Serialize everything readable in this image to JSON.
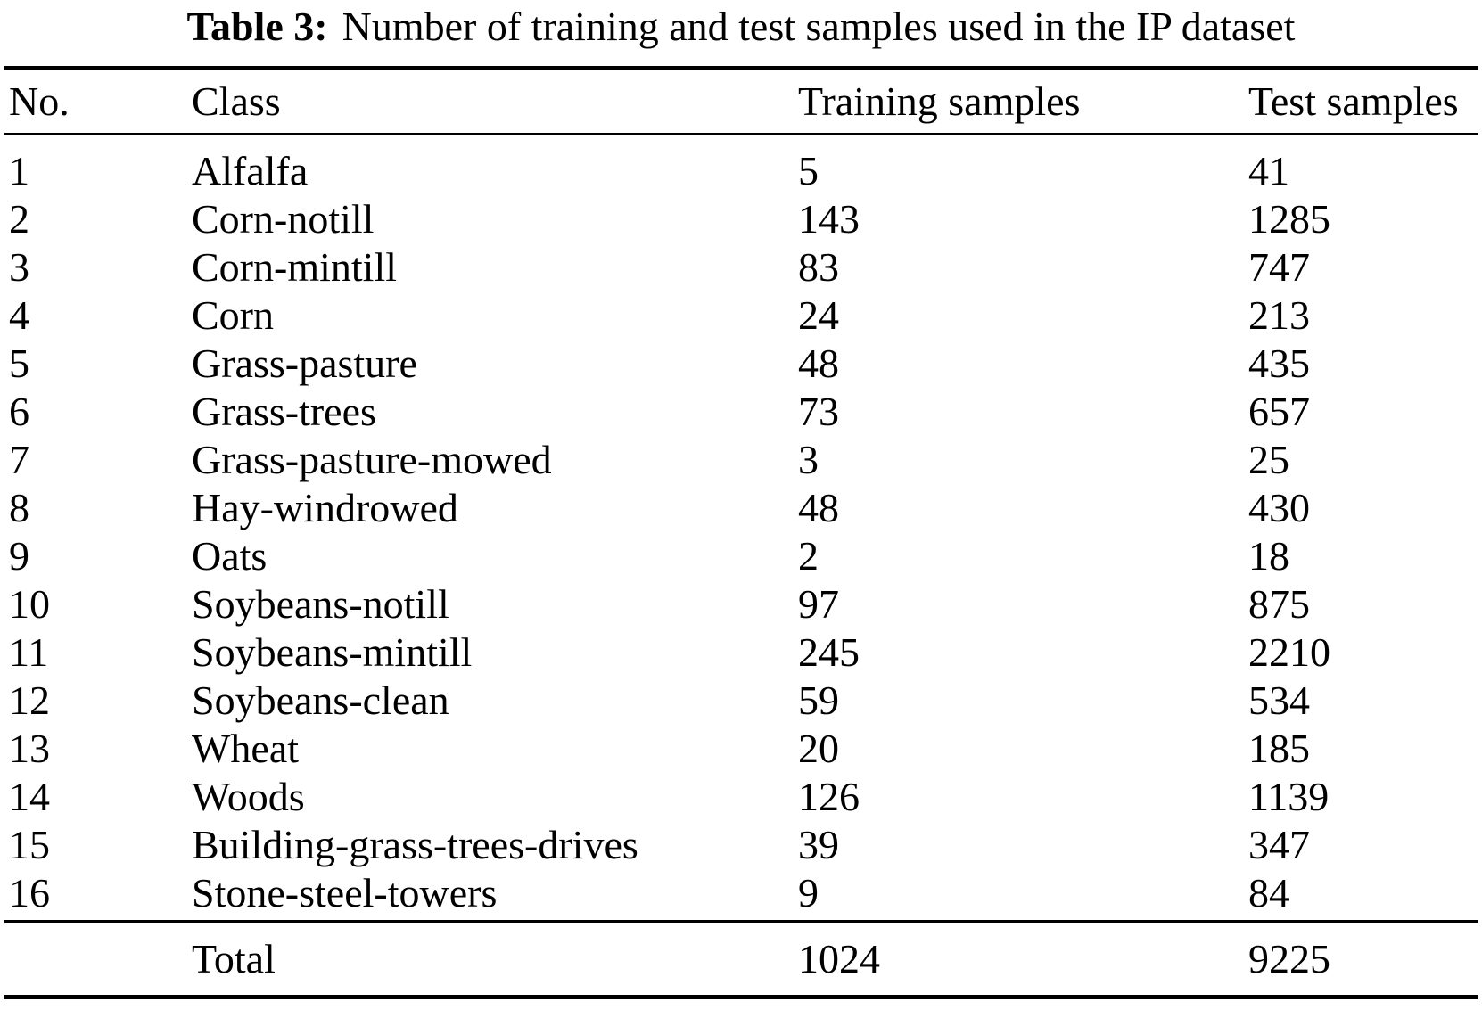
{
  "caption": {
    "label": "Table 3:",
    "text": "Number of training and test samples used in the IP dataset"
  },
  "table": {
    "columns": {
      "no": "No.",
      "class": "Class",
      "training": "Training samples",
      "test": "Test samples"
    },
    "rows": [
      {
        "no": "1",
        "class": "Alfalfa",
        "training": "5",
        "test": "41"
      },
      {
        "no": "2",
        "class": "Corn-notill",
        "training": "143",
        "test": "1285"
      },
      {
        "no": "3",
        "class": "Corn-mintill",
        "training": "83",
        "test": "747"
      },
      {
        "no": "4",
        "class": "Corn",
        "training": "24",
        "test": "213"
      },
      {
        "no": "5",
        "class": "Grass-pasture",
        "training": "48",
        "test": "435"
      },
      {
        "no": "6",
        "class": "Grass-trees",
        "training": "73",
        "test": "657"
      },
      {
        "no": "7",
        "class": "Grass-pasture-mowed",
        "training": "3",
        "test": "25"
      },
      {
        "no": "8",
        "class": "Hay-windrowed",
        "training": "48",
        "test": "430"
      },
      {
        "no": "9",
        "class": "Oats",
        "training": "2",
        "test": "18"
      },
      {
        "no": "10",
        "class": "Soybeans-notill",
        "training": "97",
        "test": "875"
      },
      {
        "no": "11",
        "class": "Soybeans-mintill",
        "training": "245",
        "test": "2210"
      },
      {
        "no": "12",
        "class": "Soybeans-clean",
        "training": "59",
        "test": "534"
      },
      {
        "no": "13",
        "class": "Wheat",
        "training": "20",
        "test": "185"
      },
      {
        "no": "14",
        "class": "Woods",
        "training": "126",
        "test": "1139"
      },
      {
        "no": "15",
        "class": "Building-grass-trees-drives",
        "training": "39",
        "test": "347"
      },
      {
        "no": "16",
        "class": "Stone-steel-towers",
        "training": "9",
        "test": "84"
      }
    ],
    "total": {
      "label": "Total",
      "training": "1024",
      "test": "9225"
    }
  }
}
